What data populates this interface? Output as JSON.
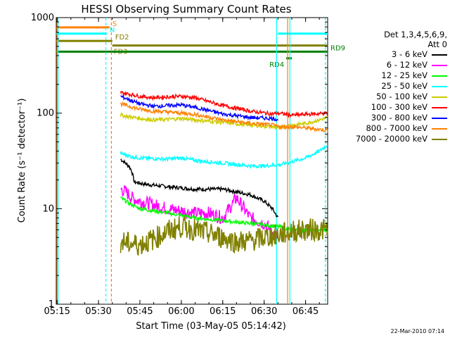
{
  "chart_data": {
    "type": "line",
    "title": "HESSI Observing Summary Count Rates",
    "xlabel": "Start Time (03-May-05 05:14:42)",
    "ylabel": "Count Rate (s⁻¹ detector⁻¹)",
    "xlim": [
      "05:14:42",
      "06:53:00"
    ],
    "ylim": [
      1,
      1000
    ],
    "yscale": "log",
    "x_ticks": [
      "05:15",
      "05:30",
      "05:45",
      "06:00",
      "06:15",
      "06:30",
      "06:45"
    ],
    "y_ticks": [
      "1",
      "10",
      "100",
      "1000"
    ],
    "legend": {
      "header_line1": "Det 1,3,4,5,6,9,",
      "header_line2": "Att 0",
      "placement": "right"
    },
    "series": [
      {
        "name": "3 - 6 keV",
        "color": "#000000",
        "x": [
          "05:38",
          "05:41",
          "05:42",
          "05:43",
          "05:47",
          "05:55",
          "06:05",
          "06:15",
          "06:20",
          "06:25",
          "06:30",
          "06:33",
          "06:35"
        ],
        "y": [
          33,
          28,
          25,
          19,
          18,
          17,
          16,
          16,
          15,
          14,
          12,
          10,
          8
        ]
      },
      {
        "name": "6 - 12 keV",
        "color": "#ff00ff",
        "x": [
          "05:38",
          "05:40",
          "05:42",
          "05:45",
          "05:55",
          "06:05",
          "06:10",
          "06:15",
          "06:20",
          "06:25",
          "06:30",
          "06:35"
        ],
        "y": [
          16,
          15,
          13,
          12,
          10,
          9,
          9,
          8,
          13,
          8,
          7,
          5
        ]
      },
      {
        "name": "12 - 25 keV",
        "color": "#00ff00",
        "x": [
          "05:38",
          "05:42",
          "05:45",
          "05:55",
          "06:05",
          "06:15",
          "06:25",
          "06:35",
          "06:40",
          "06:53"
        ],
        "y": [
          13,
          11,
          10,
          9,
          8,
          7.5,
          7,
          6.5,
          6,
          6
        ]
      },
      {
        "name": "25 - 50 keV",
        "color": "#00ffff",
        "x": [
          "05:38",
          "05:42",
          "05:45",
          "05:55",
          "06:00",
          "06:05",
          "06:15",
          "06:25",
          "06:30",
          "06:36",
          "06:40",
          "06:45",
          "06:50",
          "06:53"
        ],
        "y": [
          38,
          35,
          34,
          33,
          34,
          32,
          30,
          28,
          28,
          29,
          31,
          34,
          40,
          47
        ]
      },
      {
        "name": "50 - 100 keV",
        "color": "#cccc00",
        "x": [
          "05:38",
          "05:45",
          "05:50",
          "05:55",
          "06:00",
          "06:05",
          "06:15",
          "06:25",
          "06:33",
          "06:35",
          "06:40",
          "06:45",
          "06:50",
          "06:53"
        ],
        "y": [
          95,
          88,
          85,
          86,
          88,
          85,
          80,
          75,
          72,
          70,
          75,
          78,
          85,
          90
        ]
      },
      {
        "name": "100 - 300 keV",
        "color": "#ff0000",
        "x": [
          "05:38",
          "05:45",
          "05:50",
          "05:55",
          "06:00",
          "06:05",
          "06:15",
          "06:25",
          "06:33",
          "06:35",
          "06:40",
          "06:45",
          "06:53"
        ],
        "y": [
          165,
          150,
          145,
          148,
          150,
          145,
          120,
          105,
          98,
          100,
          95,
          97,
          100
        ]
      },
      {
        "name": "300 - 800 keV",
        "color": "#0000ff",
        "x": [
          "05:38",
          "05:45",
          "05:50",
          "05:55",
          "06:00",
          "06:05",
          "06:15",
          "06:25",
          "06:33",
          "06:35"
        ],
        "y": [
          150,
          125,
          118,
          120,
          122,
          115,
          98,
          90,
          88,
          86
        ]
      },
      {
        "name": "800 - 7000 keV",
        "color": "#ff8000",
        "x": [
          "05:38",
          "05:45",
          "05:50",
          "05:55",
          "06:00",
          "06:05",
          "06:15",
          "06:25",
          "06:33",
          "06:35",
          "06:40",
          "06:45",
          "06:53"
        ],
        "y": [
          125,
          110,
          105,
          103,
          100,
          97,
          85,
          78,
          75,
          72,
          72,
          70,
          66
        ]
      },
      {
        "name": "7000 - 20000 keV",
        "color": "#808000",
        "x": [
          "05:38",
          "05:42",
          "05:45",
          "05:50",
          "05:55",
          "06:00",
          "06:05",
          "06:10",
          "06:15",
          "06:20",
          "06:25",
          "06:30",
          "06:35",
          "06:40",
          "06:45",
          "06:53"
        ],
        "y": [
          4.5,
          4.3,
          4.2,
          4.8,
          5.8,
          6.5,
          6.0,
          5.5,
          5.0,
          4.5,
          4.6,
          5.0,
          5.3,
          5.8,
          6.0,
          6.0
        ]
      }
    ],
    "annotations": [
      {
        "label": "S",
        "color": "#ff8000",
        "x_start": "05:14:42",
        "x_end": "05:34",
        "y": 790
      },
      {
        "label": "N",
        "color": "#00ffff",
        "x_start": "05:14:42",
        "x_end": "05:33",
        "y": 680
      },
      {
        "label": "FD2",
        "color": "#808000",
        "x_start": "05:14:42",
        "x_end": "05:35",
        "y": 570
      },
      {
        "label": "FD3",
        "color": "#808000",
        "x_start": "05:35",
        "x_end": "06:53",
        "y": 510
      },
      {
        "label": "RD9",
        "color": "#008000",
        "x_start": "05:14:42",
        "x_end": "06:53",
        "y": 440
      },
      {
        "label": "RD4",
        "color": "#008000",
        "x_start": "06:38",
        "x_end": "06:40",
        "y": 375
      },
      {
        "label": "",
        "color": "#00ffff",
        "x_start": "06:35",
        "x_end": "06:53",
        "y": 680
      }
    ]
  },
  "footer": {
    "timestamp": "22-Mar-2010 07:14"
  }
}
